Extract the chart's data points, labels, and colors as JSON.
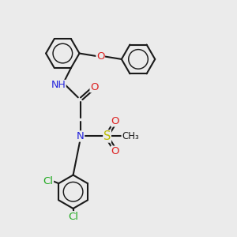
{
  "bg_color": "#ebebeb",
  "bond_color": "#1a1a1a",
  "bond_width": 1.5,
  "atom_colors": {
    "N": "#2222dd",
    "O": "#dd2222",
    "S": "#bbbb00",
    "Cl": "#22aa22",
    "C": "#1a1a1a",
    "H": "#888888"
  },
  "font_size": 9.5
}
